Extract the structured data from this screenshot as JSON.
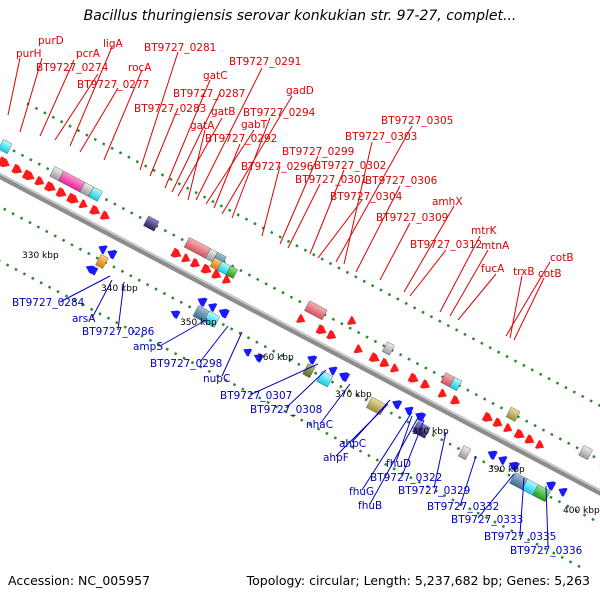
{
  "title": "Bacillus thuringiensis serovar konkukian str. 97-27, complet...",
  "footer": {
    "accession": "Accession: NC_005957",
    "topology": "Topology: circular; Length: 5,237,682 bp; Genes: 5,263"
  },
  "scale_labels": [
    "330 kbp",
    "340 kbp",
    "350 kbp",
    "360 kbp",
    "370 kbp",
    "380 kbp",
    "390 kbp",
    "400 kbp"
  ],
  "forward_labels": [
    "purD",
    "purH",
    "pcrA",
    "BT9727_0274",
    "ligA",
    "BT9727_0277",
    "rocA",
    "BT9727_0281",
    "BT9727_0283",
    "gatC",
    "BT9727_0287",
    "gatB",
    "gatA",
    "BT9727_0291",
    "gabT",
    "BT9727_0292",
    "gadD",
    "BT9727_0294",
    "BT9727_0296",
    "BT9727_0299",
    "BT9727_0301",
    "BT9727_0302",
    "BT9727_0304",
    "BT9727_0305",
    "BT9727_0303",
    "BT9727_0306",
    "BT9727_0309",
    "amhX",
    "BT9727_0312",
    "mtrK",
    "mtnA",
    "fucA",
    "cotB",
    "trxB",
    "cotB"
  ],
  "reverse_labels": [
    "BT9727_0284",
    "arsA",
    "BT9727_0286",
    "ampS",
    "BT9727_0298",
    "nupC",
    "BT9727_0307",
    "BT9727_0308",
    "nhaC",
    "ahpC",
    "ahpF",
    "fhuD",
    "BT9727_0322",
    "fhuG",
    "fhuB",
    "BT9727_0329",
    "BT9727_0332",
    "BT9727_0333",
    "BT9727_0335",
    "BT9727_0336"
  ],
  "colors": {
    "forward_label": "#e00000",
    "reverse_label": "#0000c0",
    "forward_gene": "#ff1a1a",
    "reverse_gene": "#1a1aff",
    "backbone": "#8c8c8c",
    "tick": "#2a8a2a"
  }
}
